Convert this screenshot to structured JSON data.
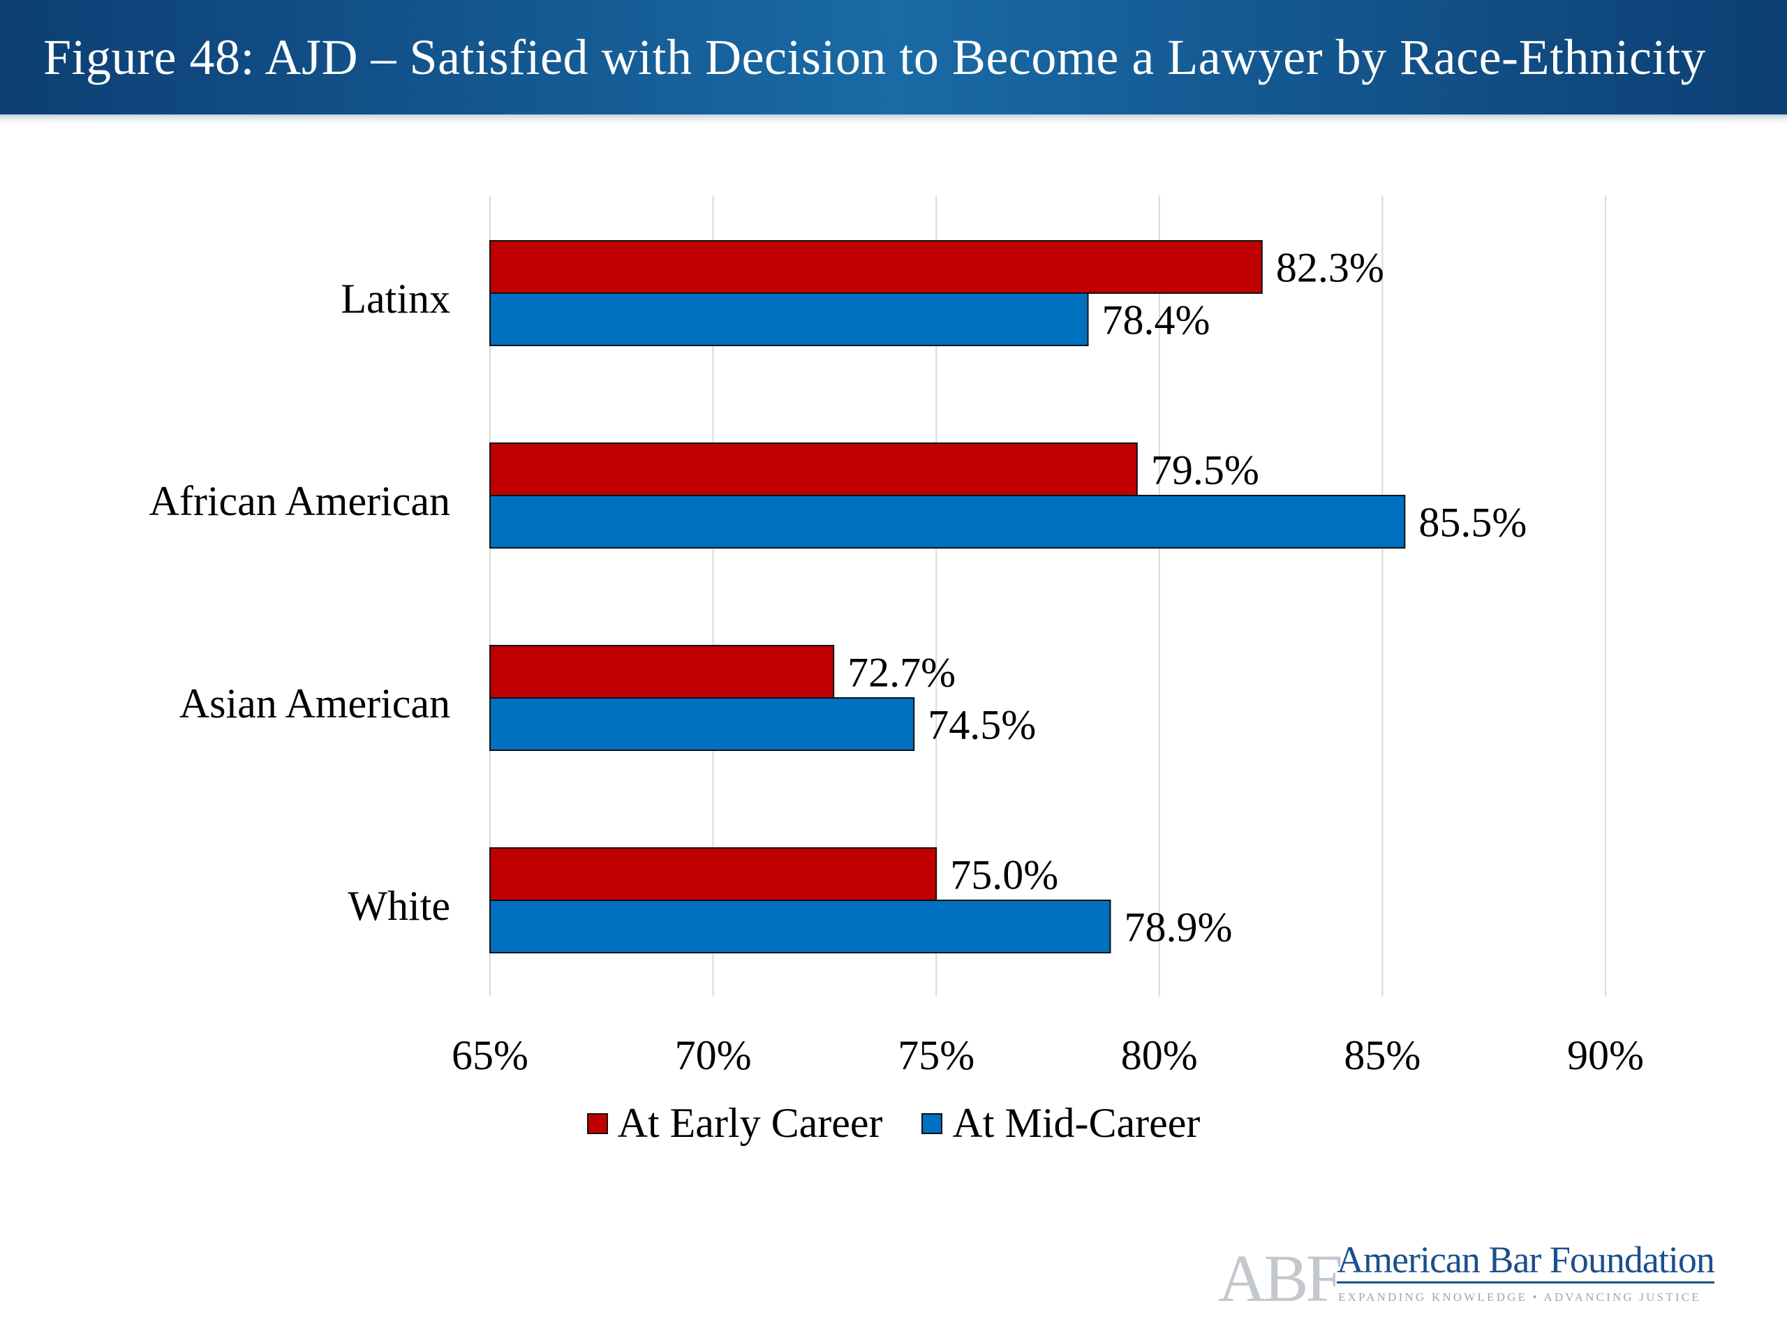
{
  "header": {
    "title": "Figure 48: AJD – Satisfied with Decision to Become a Lawyer by Race-Ethnicity"
  },
  "chart_data": {
    "type": "bar",
    "orientation": "horizontal",
    "title": "Figure 48: AJD – Satisfied with Decision to Become a Lawyer by Race-Ethnicity",
    "categories": [
      "Latinx",
      "African American",
      "Asian American",
      "White"
    ],
    "series": [
      {
        "name": "At Early Career",
        "color": "#c00000",
        "values": [
          82.3,
          79.5,
          72.7,
          75.0
        ],
        "labels": [
          "82.3%",
          "79.5%",
          "72.7%",
          "75.0%"
        ]
      },
      {
        "name": "At Mid-Career",
        "color": "#0070c0",
        "values": [
          78.4,
          85.5,
          74.5,
          78.9
        ],
        "labels": [
          "78.4%",
          "85.5%",
          "74.5%",
          "78.9%"
        ]
      }
    ],
    "xlim": [
      65,
      90
    ],
    "xticks": [
      65,
      70,
      75,
      80,
      85,
      90
    ],
    "xtick_labels": [
      "65%",
      "70%",
      "75%",
      "80%",
      "85%",
      "90%"
    ],
    "grid": true,
    "legend_position": "bottom"
  },
  "legend": {
    "early_label": "At Early Career",
    "mid_label": "At Mid-Career"
  },
  "logo": {
    "mark": "ABF",
    "name": "American Bar Foundation",
    "tagline": "EXPANDING KNOWLEDGE • ADVANCING JUSTICE"
  }
}
